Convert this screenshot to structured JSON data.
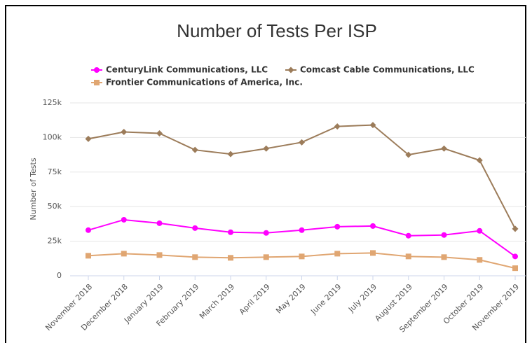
{
  "chart_data": {
    "type": "line",
    "title": "Number of Tests Per ISP",
    "y_label": "Number of Tests",
    "categories": [
      "November 2018",
      "December 2018",
      "January 2019",
      "February 2019",
      "March 2019",
      "April 2019",
      "May 2019",
      "June 2019",
      "July 2019",
      "August 2019",
      "September 2019",
      "October 2019",
      "November 2019"
    ],
    "series": [
      {
        "name": "CenturyLink Communications, LLC",
        "color": "#ff00ff",
        "marker": "circle",
        "values": [
          33000,
          40500,
          38000,
          34500,
          31500,
          31000,
          33000,
          35500,
          36000,
          29000,
          29500,
          32500,
          14000
        ]
      },
      {
        "name": "Comcast Cable Communications, LLC",
        "color": "#9c7c5a",
        "marker": "diamond",
        "values": [
          99000,
          104000,
          103000,
          91000,
          88000,
          92000,
          96500,
          108000,
          109000,
          87500,
          92000,
          83500,
          34000
        ]
      },
      {
        "name": "Frontier Communications of America, Inc.",
        "color": "#e0a672",
        "marker": "square",
        "values": [
          14500,
          16000,
          15000,
          13500,
          13000,
          13500,
          14000,
          16000,
          16500,
          14000,
          13500,
          11500,
          5500
        ]
      }
    ],
    "ylim": [
      0,
      125000
    ],
    "yticks": [
      0,
      {
        "value": 25000,
        "label": "25k"
      },
      {
        "value": 50000,
        "label": "50k"
      },
      {
        "value": 75000,
        "label": "75k"
      },
      {
        "value": 100000,
        "label": "100k"
      },
      {
        "value": 125000,
        "label": "125k"
      }
    ],
    "grid": true
  }
}
